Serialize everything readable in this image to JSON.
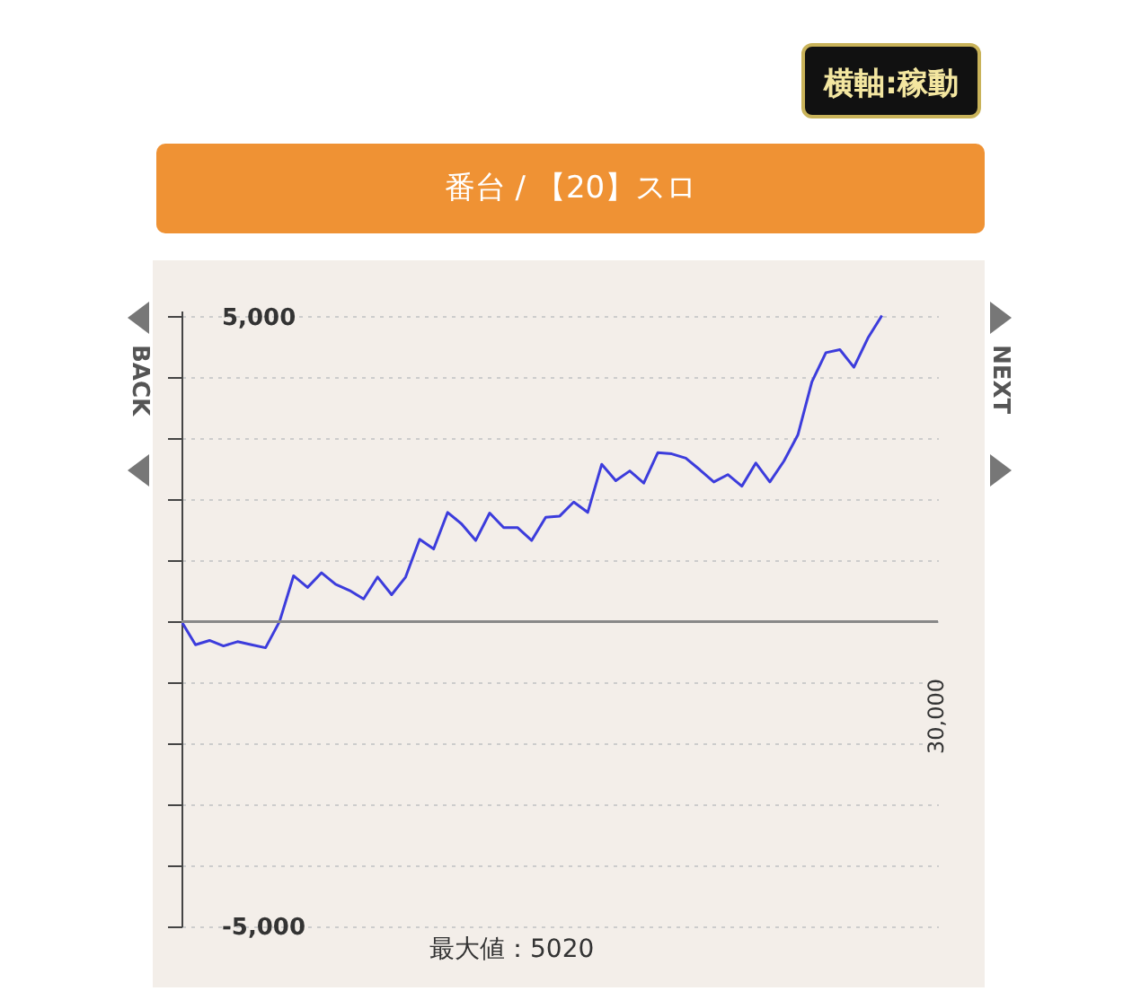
{
  "chart_data": {
    "type": "line",
    "subtitle": "番台 / 【20】スロ",
    "annotations": [
      "横軸:稼動",
      "BACK",
      "NEXT",
      "最大値：5020",
      "30,000"
    ],
    "categories": [
      null,
      null,
      null,
      null,
      null,
      null,
      null,
      null,
      null,
      null,
      null,
      null,
      null,
      null,
      null,
      null,
      null,
      null,
      null,
      null,
      null,
      null,
      null,
      null,
      null,
      null,
      null,
      null,
      null,
      null,
      null,
      null,
      null,
      null,
      null,
      null,
      null,
      null,
      null,
      null,
      null,
      null,
      null,
      null,
      null,
      null,
      null,
      null,
      null,
      null,
      null,
      null,
      null,
      null,
      null
    ],
    "series": [
      {
        "color": "#3c3cdc",
        "values": [
          0,
          -380,
          -310,
          -400,
          -330,
          -380,
          -430,
          0,
          750,
          560,
          800,
          610,
          510,
          370,
          730,
          440,
          730,
          1350,
          1190,
          1790,
          1600,
          1330,
          1780,
          1540,
          1540,
          1330,
          1710,
          1730,
          1960,
          1790,
          2580,
          2310,
          2470,
          2270,
          2770,
          2750,
          2680,
          2490,
          2290,
          2410,
          2220,
          2600,
          2290,
          2630,
          3060,
          3930,
          4410,
          4460,
          4170,
          4650,
          5020,
          null,
          null,
          null,
          null
        ]
      }
    ],
    "ylim": [
      -5000,
      5100
    ],
    "yticks": [
      {
        "value": -5000,
        "label": "-5,000"
      },
      {
        "value": -4000,
        "label": null
      },
      {
        "value": -3000,
        "label": null
      },
      {
        "value": -2000,
        "label": null
      },
      {
        "value": -1000,
        "label": null
      },
      {
        "value": 0,
        "label": null
      },
      {
        "value": 1000,
        "label": null
      },
      {
        "value": 2000,
        "label": null
      },
      {
        "value": 3000,
        "label": null
      },
      {
        "value": 4000,
        "label": null
      },
      {
        "value": 5000,
        "label": "5,000"
      }
    ],
    "grid": "y",
    "ref_lines": [
      {
        "axis": "y",
        "value": 0,
        "color": "#888888"
      }
    ]
  }
}
